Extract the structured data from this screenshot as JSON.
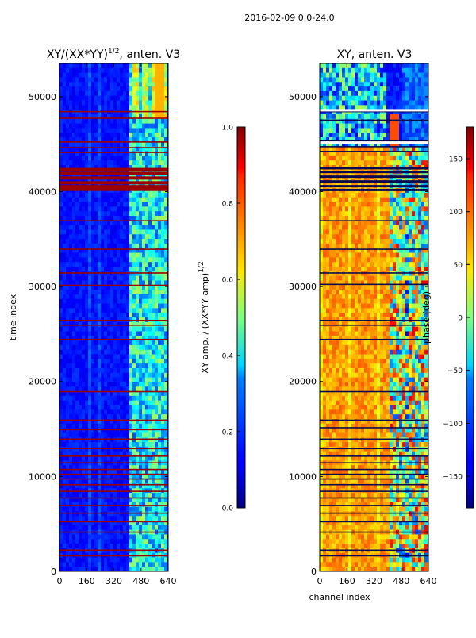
{
  "figure": {
    "suptitle": "2016-02-09 0.0-24.0"
  },
  "chart_data": [
    {
      "type": "heatmap",
      "title_main": "XY/(XX*YY)",
      "title_exp": "1/2",
      "title_tail": ", anten. V3",
      "xlabel": "",
      "ylabel": "time index",
      "xlim": [
        0,
        640
      ],
      "ylim": [
        0,
        53500
      ],
      "x_ticks": [
        0,
        160,
        320,
        480,
        640
      ],
      "y_ticks": [
        0,
        10000,
        20000,
        30000,
        40000,
        50000
      ],
      "colorbar": {
        "label_main": "XY amp. / (XX*YY amp)",
        "label_exp": "1/2",
        "range": [
          0.0,
          1.0
        ],
        "ticks": [
          "0.0",
          "0.2",
          "0.4",
          "0.6",
          "0.8",
          "1.0"
        ],
        "colormap": "jet"
      }
    },
    {
      "type": "heatmap",
      "title_main": "XY, anten. V3",
      "xlabel": "channel index",
      "ylabel": "",
      "xlim": [
        0,
        640
      ],
      "ylim": [
        0,
        53500
      ],
      "x_ticks": [
        0,
        160,
        320,
        480,
        640
      ],
      "y_ticks": [
        0,
        10000,
        20000,
        30000,
        40000,
        50000
      ],
      "colorbar": {
        "label_main": "phase (deg)",
        "range": [
          -180,
          180
        ],
        "ticks": [
          "150",
          "100",
          "50",
          "0",
          "−50",
          "−100",
          "−150"
        ],
        "tick_values": [
          150,
          100,
          50,
          0,
          -50,
          -100,
          -150
        ],
        "colormap": "jet"
      }
    }
  ],
  "colors": {
    "jet_low": "#00007f",
    "jet_mid": "#7fff7f",
    "jet_high": "#7f0000"
  }
}
